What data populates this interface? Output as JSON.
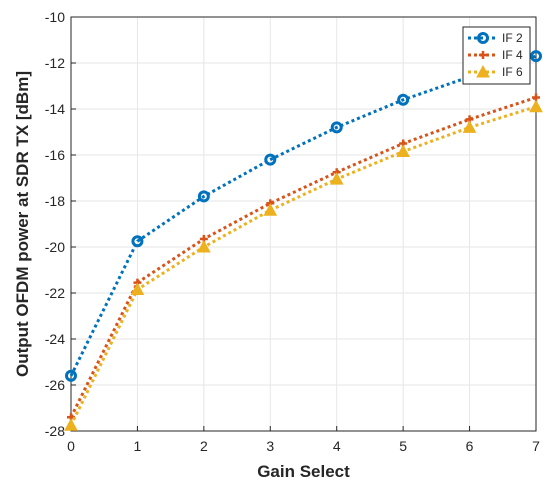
{
  "chart_data": {
    "type": "line",
    "title": "",
    "xlabel": "Gain Select",
    "ylabel": "Output OFDM power at SDR TX [dBm]",
    "x": [
      0,
      1,
      2,
      3,
      4,
      5,
      6,
      7
    ],
    "xlim": [
      0,
      7
    ],
    "ylim": [
      -28,
      -10
    ],
    "xticks": [
      "0",
      "1",
      "2",
      "3",
      "4",
      "5",
      "6",
      "7"
    ],
    "yticks": [
      "-28",
      "-26",
      "-24",
      "-22",
      "-20",
      "-18",
      "-16",
      "-14",
      "-12",
      "-10"
    ],
    "grid": true,
    "legend_position": "top-right",
    "series": [
      {
        "name": "IF 2",
        "color": "#0072BD",
        "marker": "circle",
        "values": [
          -25.6,
          -19.75,
          -17.8,
          -16.2,
          -14.8,
          -13.6,
          -12.6,
          -11.7
        ]
      },
      {
        "name": "IF 4",
        "color": "#D95319",
        "marker": "plus",
        "values": [
          -27.4,
          -21.55,
          -19.65,
          -18.1,
          -16.75,
          -15.5,
          -14.45,
          -13.5
        ]
      },
      {
        "name": "IF 6",
        "color": "#EDB120",
        "marker": "triangle",
        "values": [
          -27.75,
          -21.85,
          -20.0,
          -18.4,
          -17.05,
          -15.85,
          -14.8,
          -13.9
        ]
      }
    ]
  }
}
